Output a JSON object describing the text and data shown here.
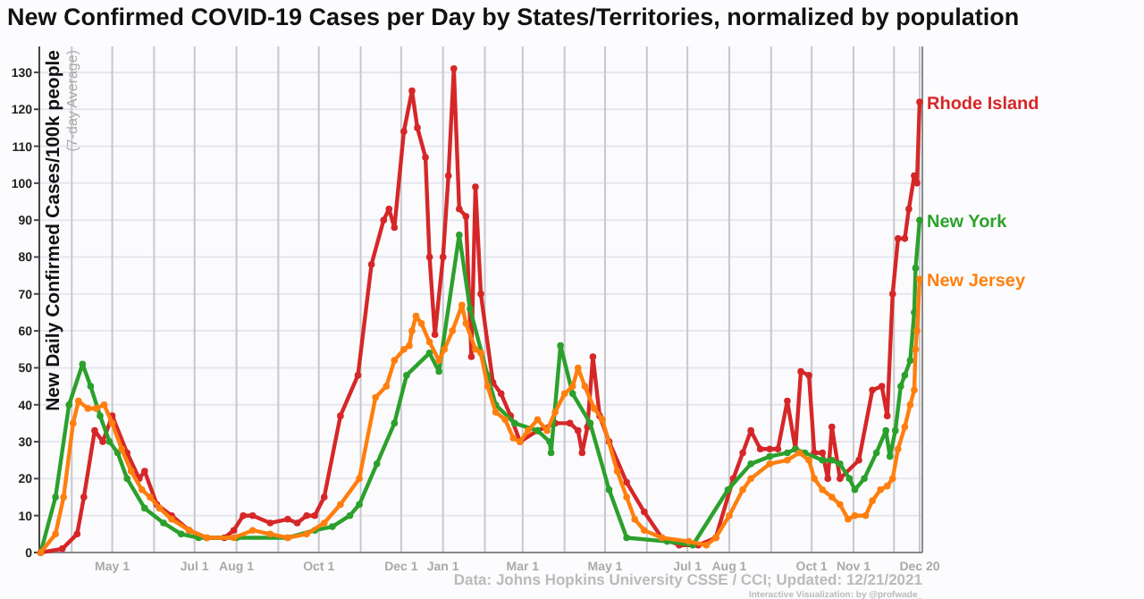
{
  "chart_data": {
    "type": "line",
    "title": "New Confirmed COVID-19 Cases per Day by States/Territories, normalized by population",
    "ylabel": "New Daily Confirmed Cases/100k people",
    "annotations": [
      "(7-day Average)",
      "Data: Johns Hopkins University CSSE / CCI; Updated: 12/21/2021",
      "Interactive Visualization: by @profwade_"
    ],
    "xlim": [
      "2020-03-08",
      "2021-12-22"
    ],
    "xticks": [
      {
        "value": "2020-04-01",
        "label": null
      },
      {
        "value": "2020-05-01",
        "label": "May 1"
      },
      {
        "value": "2020-06-01",
        "label": null
      },
      {
        "value": "2020-07-01",
        "label": "Jul 1"
      },
      {
        "value": "2020-08-01",
        "label": "Aug 1"
      },
      {
        "value": "2020-09-01",
        "label": null
      },
      {
        "value": "2020-10-01",
        "label": "Oct 1"
      },
      {
        "value": "2020-11-01",
        "label": null
      },
      {
        "value": "2020-12-01",
        "label": "Dec 1"
      },
      {
        "value": "2021-01-01",
        "label": "Jan 1"
      },
      {
        "value": "2021-02-01",
        "label": null
      },
      {
        "value": "2021-03-01",
        "label": "Mar 1"
      },
      {
        "value": "2021-04-01",
        "label": null
      },
      {
        "value": "2021-05-01",
        "label": "May 1"
      },
      {
        "value": "2021-06-01",
        "label": null
      },
      {
        "value": "2021-07-01",
        "label": "Jul 1"
      },
      {
        "value": "2021-08-01",
        "label": "Aug 1"
      },
      {
        "value": "2021-09-01",
        "label": null
      },
      {
        "value": "2021-10-01",
        "label": "Oct 1"
      },
      {
        "value": "2021-11-01",
        "label": "Nov 1"
      },
      {
        "value": "2021-12-01",
        "label": null
      },
      {
        "value": "2021-12-20",
        "label": "Dec 20"
      }
    ],
    "ylim": [
      0,
      137
    ],
    "yticks": [
      0,
      10,
      20,
      30,
      40,
      50,
      60,
      70,
      80,
      90,
      100,
      110,
      120,
      130
    ],
    "grid": true,
    "legend": false,
    "marker": "circle",
    "line_style": "solid",
    "series": [
      {
        "name": "Rhode Island",
        "color": "#d62728",
        "x": [
          "2020-03-09",
          "2020-03-25",
          "2020-04-05",
          "2020-04-10",
          "2020-04-18",
          "2020-04-24",
          "2020-05-01",
          "2020-05-12",
          "2020-05-21",
          "2020-05-25",
          "2020-06-03",
          "2020-06-14",
          "2020-06-27",
          "2020-07-10",
          "2020-07-23",
          "2020-07-30",
          "2020-08-06",
          "2020-08-13",
          "2020-08-26",
          "2020-09-08",
          "2020-09-15",
          "2020-09-22",
          "2020-09-28",
          "2020-10-05",
          "2020-10-17",
          "2020-10-30",
          "2020-11-09",
          "2020-11-18",
          "2020-11-22",
          "2020-11-26",
          "2020-12-03",
          "2020-12-09",
          "2020-12-13",
          "2020-12-19",
          "2020-12-22",
          "2020-12-26",
          "2021-01-01",
          "2021-01-05",
          "2021-01-09",
          "2021-01-13",
          "2021-01-18",
          "2021-01-22",
          "2021-01-25",
          "2021-01-29",
          "2021-02-07",
          "2021-02-13",
          "2021-02-20",
          "2021-02-27",
          "2021-03-12",
          "2021-03-25",
          "2021-04-05",
          "2021-04-11",
          "2021-04-14",
          "2021-04-18",
          "2021-04-22",
          "2021-04-27",
          "2021-05-04",
          "2021-05-17",
          "2021-05-30",
          "2021-06-12",
          "2021-06-25",
          "2021-07-09",
          "2021-07-22",
          "2021-08-04",
          "2021-08-11",
          "2021-08-17",
          "2021-08-24",
          "2021-08-31",
          "2021-09-06",
          "2021-09-13",
          "2021-09-19",
          "2021-09-23",
          "2021-09-29",
          "2021-10-03",
          "2021-10-09",
          "2021-10-13",
          "2021-10-16",
          "2021-10-22",
          "2021-11-05",
          "2021-11-15",
          "2021-11-22",
          "2021-11-26",
          "2021-11-30",
          "2021-12-04",
          "2021-12-09",
          "2021-12-12",
          "2021-12-16",
          "2021-12-18",
          "2021-12-20"
        ],
        "values": [
          0,
          1,
          5,
          15,
          33,
          30,
          37,
          27,
          20,
          22,
          13,
          10,
          6,
          4,
          4,
          6,
          10,
          10,
          8,
          9,
          8,
          10,
          10,
          15,
          37,
          48,
          78,
          90,
          93,
          88,
          114,
          125,
          115,
          107,
          80,
          59,
          80,
          102,
          131,
          93,
          91,
          53,
          99,
          70,
          46,
          43,
          37,
          30,
          33,
          35,
          35,
          33,
          27,
          34,
          53,
          37,
          30,
          19,
          11,
          4,
          2,
          2,
          4,
          20,
          27,
          33,
          28,
          28,
          28,
          41,
          28,
          49,
          48,
          27,
          27,
          20,
          34,
          20,
          25,
          44,
          45,
          37,
          70,
          85,
          85,
          93,
          102,
          100,
          122
        ]
      },
      {
        "name": "New York",
        "color": "#2ca02c",
        "x": [
          "2020-03-09",
          "2020-03-20",
          "2020-03-30",
          "2020-04-09",
          "2020-04-15",
          "2020-04-22",
          "2020-04-29",
          "2020-05-05",
          "2020-05-12",
          "2020-05-25",
          "2020-06-08",
          "2020-06-21",
          "2020-07-04",
          "2020-08-01",
          "2020-09-08",
          "2020-09-28",
          "2020-10-11",
          "2020-10-24",
          "2020-10-31",
          "2020-11-13",
          "2020-11-26",
          "2020-12-05",
          "2020-12-22",
          "2020-12-29",
          "2021-01-13",
          "2021-01-21",
          "2021-02-03",
          "2021-02-09",
          "2021-02-23",
          "2021-03-12",
          "2021-03-21",
          "2021-03-22",
          "2021-03-29",
          "2021-04-07",
          "2021-04-20",
          "2021-05-04",
          "2021-05-17",
          "2021-06-16",
          "2021-07-05",
          "2021-07-31",
          "2021-08-17",
          "2021-08-31",
          "2021-09-13",
          "2021-09-19",
          "2021-09-26",
          "2021-10-09",
          "2021-10-16",
          "2021-10-22",
          "2021-10-29",
          "2021-11-02",
          "2021-11-09",
          "2021-11-18",
          "2021-11-25",
          "2021-11-28",
          "2021-12-02",
          "2021-12-06",
          "2021-12-09",
          "2021-12-13",
          "2021-12-16",
          "2021-12-17",
          "2021-12-20"
        ],
        "values": [
          0,
          15,
          40,
          51,
          45,
          37,
          30,
          27,
          20,
          12,
          8,
          5,
          4,
          4,
          4,
          6,
          7,
          10,
          13,
          24,
          35,
          48,
          54,
          49,
          86,
          66,
          48,
          40,
          35,
          33,
          30,
          27,
          56,
          43,
          35,
          17,
          4,
          3,
          2,
          17,
          24,
          26,
          27,
          28,
          27,
          25,
          25,
          24,
          20,
          17,
          20,
          27,
          33,
          26,
          33,
          45,
          48,
          52,
          65,
          77,
          90
        ]
      },
      {
        "name": "New Jersey",
        "color": "#ff7f0e",
        "x": [
          "2020-03-09",
          "2020-03-20",
          "2020-03-26",
          "2020-04-02",
          "2020-04-06",
          "2020-04-13",
          "2020-04-19",
          "2020-04-25",
          "2020-05-01",
          "2020-05-08",
          "2020-05-15",
          "2020-05-23",
          "2020-05-29",
          "2020-06-05",
          "2020-06-14",
          "2020-06-27",
          "2020-07-10",
          "2020-07-30",
          "2020-08-13",
          "2020-08-26",
          "2020-09-08",
          "2020-09-22",
          "2020-10-05",
          "2020-10-17",
          "2020-10-31",
          "2020-11-12",
          "2020-11-20",
          "2020-11-26",
          "2020-12-03",
          "2020-12-07",
          "2020-12-09",
          "2020-12-12",
          "2020-12-16",
          "2020-12-22",
          "2020-12-29",
          "2021-01-02",
          "2021-01-08",
          "2021-01-15",
          "2021-01-18",
          "2021-01-25",
          "2021-01-29",
          "2021-02-03",
          "2021-02-09",
          "2021-02-16",
          "2021-02-22",
          "2021-02-27",
          "2021-03-05",
          "2021-03-12",
          "2021-03-19",
          "2021-03-25",
          "2021-04-01",
          "2021-04-07",
          "2021-04-11",
          "2021-04-16",
          "2021-04-23",
          "2021-04-29",
          "2021-05-10",
          "2021-05-17",
          "2021-05-23",
          "2021-05-30",
          "2021-06-12",
          "2021-07-02",
          "2021-07-15",
          "2021-07-22",
          "2021-08-01",
          "2021-08-11",
          "2021-08-17",
          "2021-08-31",
          "2021-09-13",
          "2021-09-22",
          "2021-09-29",
          "2021-10-03",
          "2021-10-09",
          "2021-10-16",
          "2021-10-22",
          "2021-10-28",
          "2021-11-02",
          "2021-11-10",
          "2021-11-15",
          "2021-11-21",
          "2021-11-26",
          "2021-11-30",
          "2021-12-04",
          "2021-12-09",
          "2021-12-13",
          "2021-12-16",
          "2021-12-17",
          "2021-12-18",
          "2021-12-20"
        ],
        "values": [
          0,
          5,
          15,
          35,
          41,
          39,
          39,
          40,
          35,
          28,
          22,
          17,
          15,
          12,
          9,
          6,
          4,
          4,
          6,
          5,
          4,
          5,
          8,
          13,
          20,
          42,
          45,
          52,
          55,
          56,
          60,
          64,
          62,
          57,
          52,
          55,
          60,
          67,
          62,
          55,
          54,
          45,
          38,
          36,
          31,
          30,
          33,
          36,
          33,
          38,
          43,
          45,
          50,
          45,
          39,
          36,
          22,
          15,
          9,
          6,
          4,
          3,
          2,
          4,
          10,
          17,
          20,
          24,
          25,
          27,
          25,
          20,
          17,
          15,
          13,
          9,
          10,
          10,
          14,
          17,
          18,
          20,
          28,
          34,
          40,
          44,
          55,
          60,
          74
        ]
      }
    ]
  }
}
